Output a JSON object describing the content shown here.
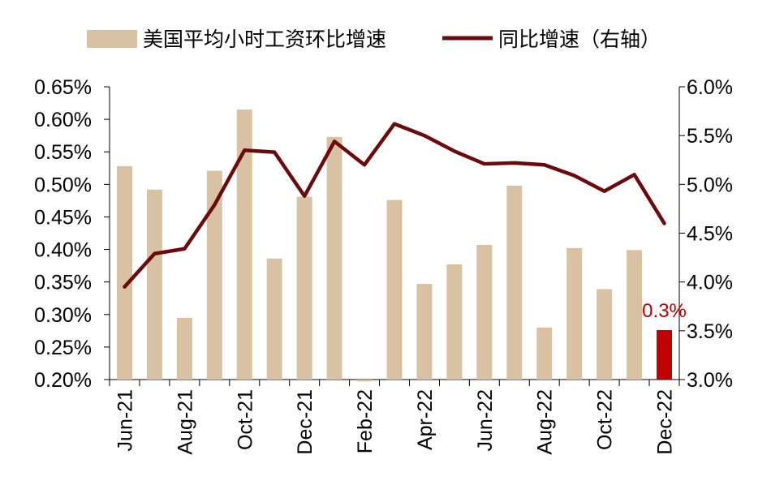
{
  "chart_data": {
    "type": "bar+line",
    "categories": [
      "Jun-21",
      "Jul-21",
      "Aug-21",
      "Sep-21",
      "Oct-21",
      "Nov-21",
      "Dec-21",
      "Jan-22",
      "Feb-22",
      "Mar-22",
      "Apr-22",
      "May-22",
      "Jun-22",
      "Jul-22",
      "Aug-22",
      "Sep-22",
      "Oct-22",
      "Nov-22",
      "Dec-22"
    ],
    "x_tick_labels": [
      "Jun-21",
      "Aug-21",
      "Oct-21",
      "Dec-21",
      "Feb-22",
      "Apr-22",
      "Jun-22",
      "Aug-22",
      "Oct-22",
      "Dec-22"
    ],
    "series": [
      {
        "name": "美国平均小时工资环比增速",
        "type": "bar",
        "axis": "left",
        "color": "#d9c2a3",
        "highlight_last_color": "#c00000",
        "values": [
          0.528,
          0.492,
          0.295,
          0.521,
          0.615,
          0.386,
          0.481,
          0.573,
          0.197,
          0.476,
          0.347,
          0.377,
          0.407,
          0.498,
          0.28,
          0.402,
          0.339,
          0.399,
          0.276
        ]
      },
      {
        "name": "同比增速（右轴）",
        "type": "line",
        "axis": "right",
        "color": "#6b0a0a",
        "values": [
          3.95,
          4.29,
          4.34,
          4.79,
          5.35,
          5.33,
          4.88,
          5.44,
          5.2,
          5.62,
          5.5,
          5.34,
          5.21,
          5.22,
          5.2,
          5.09,
          4.93,
          5.1,
          4.6
        ]
      }
    ],
    "left_axis": {
      "min": 0.2,
      "max": 0.65,
      "step": 0.05,
      "tick_labels": [
        "0.20%",
        "0.25%",
        "0.30%",
        "0.35%",
        "0.40%",
        "0.45%",
        "0.50%",
        "0.55%",
        "0.60%",
        "0.65%"
      ]
    },
    "right_axis": {
      "min": 3.0,
      "max": 6.0,
      "step": 0.5,
      "tick_labels": [
        "3.0%",
        "3.5%",
        "4.0%",
        "4.5%",
        "5.0%",
        "5.5%",
        "6.0%"
      ]
    },
    "annotation": {
      "text": "0.3%",
      "color": "#c00000"
    },
    "legend": {
      "placement": "top"
    },
    "grid": false
  }
}
